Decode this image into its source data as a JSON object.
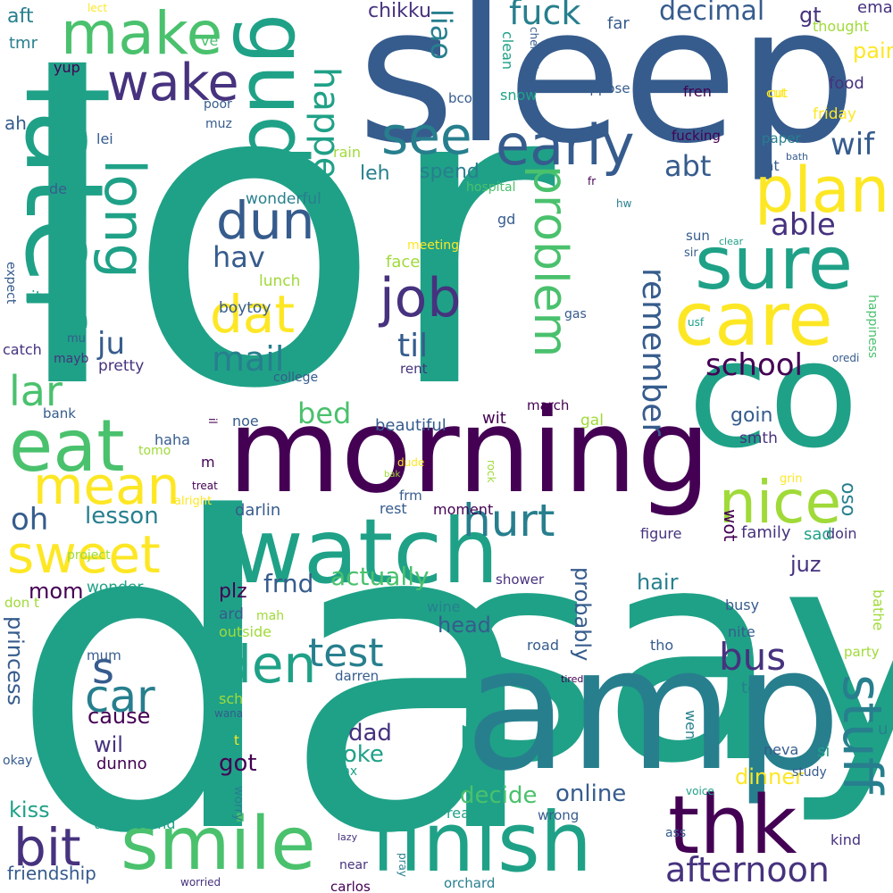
{
  "colors": {
    "background": "#ffffff",
    "viridis": [
      "#440154",
      "#46327e",
      "#365c8d",
      "#277f8e",
      "#1fa187",
      "#4ac16d",
      "#a0da39",
      "#fde725"
    ]
  },
  "words": [
    "lor",
    "da",
    "say",
    "sleep",
    "co",
    "amp",
    "morning",
    "later",
    "watch",
    "finish",
    "smile",
    "thk",
    "gud",
    "eat",
    "care",
    "sure",
    "plan",
    "early",
    "nice",
    "make",
    "wake",
    "long",
    "see",
    "dun",
    "job",
    "dat",
    "sweet",
    "mean",
    "bit",
    "den",
    "car",
    "s",
    "stuff",
    "hurt",
    "problem",
    "afternoon",
    "test",
    "bus",
    "lar",
    "oh",
    "fuck",
    "happen",
    "school",
    "mail",
    "remember",
    "decimal",
    "til",
    "ju",
    "hav",
    "able",
    "abt",
    "wif",
    "liao",
    "chikku",
    "gt",
    "email",
    "decide",
    "online",
    "smoke",
    "dad",
    "got",
    "dinner",
    "probably",
    "actually",
    "frnd",
    "bed",
    "lesson",
    "kiss",
    "friendship",
    "mom",
    "plz",
    "princess",
    "cause",
    "wil",
    "dunno",
    "goin",
    "smth",
    "juz",
    "oso",
    "hair",
    "head",
    "pain",
    "thought",
    "food",
    "friday",
    "fren",
    "suppose",
    "far",
    "aft",
    "tmr",
    "yup",
    "ve",
    "lect",
    "poor",
    "muz",
    "lei",
    "ah",
    "de",
    "spend",
    "leh",
    "wonderful",
    "rain",
    "hospital",
    "clean",
    "bcoz",
    "snow",
    "chennai",
    "fucking",
    "paper",
    "tht",
    "bath",
    "cut",
    "hw",
    "fr",
    "sun",
    "clear",
    "sir",
    "meeting",
    "face",
    "gd",
    "lunch",
    "boytoy",
    "expect",
    "rite",
    "mu",
    "catch",
    "mayb",
    "pretty",
    "college",
    "rent",
    "gas",
    "usf",
    "happiness",
    "oredi",
    "bank",
    "noe",
    "haha",
    "beautiful",
    "wit",
    "march",
    "gal",
    "tomo",
    "il",
    "m",
    "treat",
    "alright",
    "bak",
    "dude",
    "frm",
    "rock",
    "grin",
    "darlin",
    "rest",
    "moment",
    "wot",
    "family",
    "figure",
    "doin",
    "sad",
    "project",
    "wonder",
    "don t",
    "ard",
    "mah",
    "outside",
    "wine",
    "busy",
    "nite",
    "party",
    "bathe",
    "shower",
    "road",
    "tho",
    "mum",
    "darren",
    "tot",
    "sch",
    "wana",
    "tired",
    "wen",
    "t",
    "neva",
    "si",
    "u",
    "okay",
    "thanx",
    "voice",
    "study",
    "understand",
    "reason",
    "worry",
    "wrong",
    "ass",
    "kind",
    "lazy",
    "pray",
    "near",
    "carlos",
    "orchard",
    "worried",
    "cut"
  ]
}
